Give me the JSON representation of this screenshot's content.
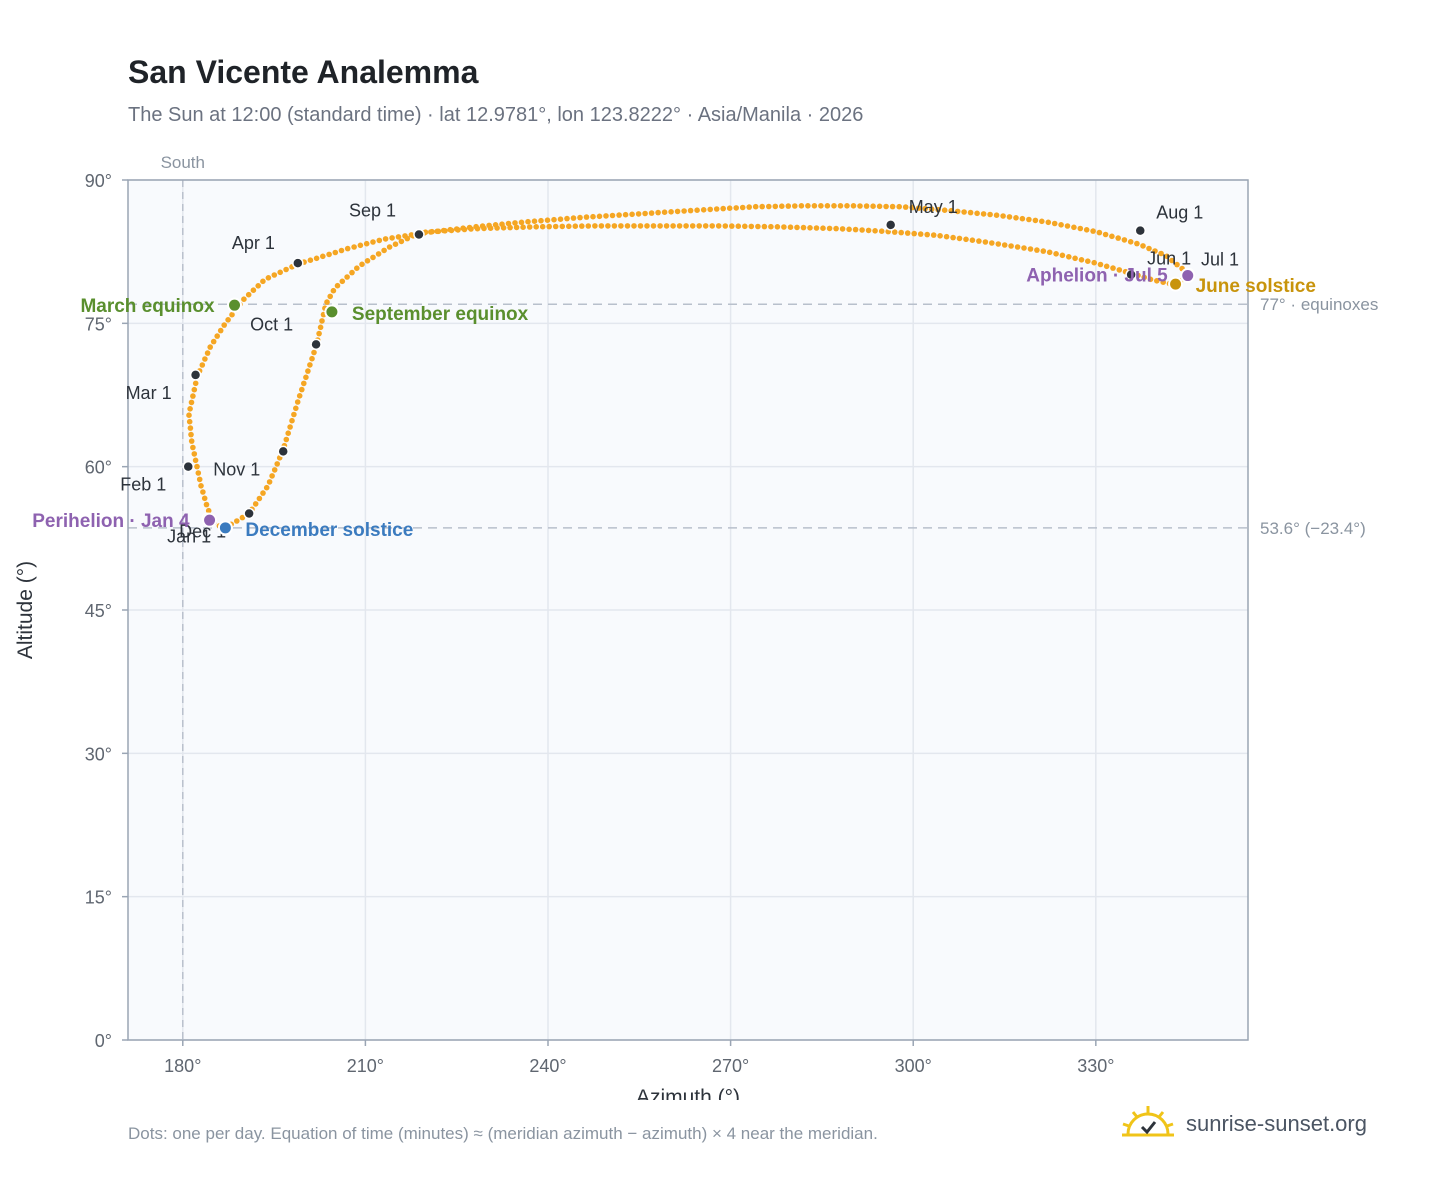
{
  "title": "San Vicente Analemma",
  "subtitle": "The Sun at 12:00 (standard time) · lat 12.9781°, lon 123.8222° · Asia/Manila · 2026",
  "footnote": "Dots: one per day. Equation of time (minutes) ≈ (meridian azimuth − azimuth) × 4 near the meridian.",
  "brand": {
    "text": "sunrise-sunset.org",
    "icon": "sun-logo-icon"
  },
  "colors": {
    "path": "#f5a623",
    "month_marker": "#2d333b",
    "equinox": "#5a8f2e",
    "perihelion_aphelion": "#8e62b0",
    "june_solstice": "#c8940c",
    "december_solstice": "#3b7bbf",
    "plot_bg": "#f8fafd",
    "grid": "#e3e7ee",
    "frame": "#9aa5b4",
    "reference_line": "#b8c0cc"
  },
  "chart_data": {
    "type": "scatter",
    "title": "San Vicente Analemma",
    "xlabel": "Azimuth (°)",
    "ylabel": "Altitude (°)",
    "xlim": [
      171,
      355
    ],
    "ylim": [
      0,
      90
    ],
    "x_ticks": [
      180,
      210,
      240,
      270,
      300,
      330
    ],
    "x_tick_labels": [
      "180°",
      "210°",
      "240°",
      "270°",
      "300°",
      "330°"
    ],
    "y_ticks": [
      0,
      15,
      30,
      45,
      60,
      75,
      90
    ],
    "y_tick_labels": [
      "0°",
      "15°",
      "30°",
      "45°",
      "60°",
      "75°",
      "90°"
    ],
    "grid": true,
    "south_line": {
      "x": 180,
      "label": "South"
    },
    "reference_lines": [
      {
        "y": 77,
        "label": "77° · equinoxes"
      },
      {
        "y": 53.6,
        "label": "53.6° (−23.4°)"
      }
    ],
    "daily_path": [
      [
        183.0,
        58.0
      ],
      [
        181.5,
        62.5
      ],
      [
        181.0,
        65.5
      ],
      [
        182.4,
        69.5
      ],
      [
        184.5,
        72.5
      ],
      [
        187.0,
        75.0
      ],
      [
        190.0,
        77.5
      ],
      [
        193.5,
        79.6
      ],
      [
        198.9,
        81.2
      ],
      [
        207.0,
        82.8
      ],
      [
        213.0,
        83.8
      ],
      [
        220.0,
        84.5
      ],
      [
        228.0,
        85.1
      ],
      [
        236.0,
        85.6
      ],
      [
        246.0,
        86.1
      ],
      [
        256.0,
        86.5
      ],
      [
        266.0,
        86.9
      ],
      [
        274.0,
        87.2
      ],
      [
        282.0,
        87.3
      ],
      [
        290.0,
        87.3
      ],
      [
        298.0,
        87.2
      ],
      [
        306.0,
        86.8
      ],
      [
        314.0,
        86.3
      ],
      [
        322.0,
        85.6
      ],
      [
        330.0,
        84.6
      ],
      [
        337.0,
        83.3
      ],
      [
        341.5,
        82.1
      ],
      [
        344.0,
        80.8
      ],
      [
        345.3,
        80.3
      ],
      [
        343.2,
        79.0
      ],
      [
        339.0,
        79.6
      ],
      [
        336.0,
        80.2
      ],
      [
        330.0,
        81.3
      ],
      [
        322.0,
        82.5
      ],
      [
        312.0,
        83.5
      ],
      [
        304.0,
        84.2
      ],
      [
        296.0,
        84.6
      ],
      [
        288.0,
        84.9
      ],
      [
        278.0,
        85.1
      ],
      [
        268.0,
        85.2
      ],
      [
        258.0,
        85.2
      ],
      [
        248.0,
        85.2
      ],
      [
        238.0,
        85.1
      ],
      [
        228.0,
        84.9
      ],
      [
        219.0,
        84.5
      ],
      [
        214.0,
        83.0
      ],
      [
        209.0,
        81.0
      ],
      [
        205.0,
        78.7
      ],
      [
        203.5,
        77.0
      ],
      [
        202.0,
        72.8
      ],
      [
        199.0,
        67.0
      ],
      [
        196.5,
        61.8
      ],
      [
        194.0,
        58.0
      ],
      [
        190.9,
        55.1
      ],
      [
        187.0,
        53.6
      ],
      [
        186.0,
        53.8
      ],
      [
        185.0,
        54.2
      ],
      [
        184.0,
        55.8
      ],
      [
        183.0,
        58.0
      ]
    ],
    "month_markers": [
      {
        "label": "Jan 1",
        "x": 184.0,
        "y": 54.6
      },
      {
        "label": "Feb 1",
        "x": 180.9,
        "y": 60.0
      },
      {
        "label": "Mar 1",
        "x": 182.1,
        "y": 69.6
      },
      {
        "label": "Apr 1",
        "x": 198.9,
        "y": 81.3
      },
      {
        "label": "May 1",
        "x": 296.3,
        "y": 85.3
      },
      {
        "label": "Jun 1",
        "x": 335.8,
        "y": 80.1
      },
      {
        "label": "Jul 1",
        "x": 345.3,
        "y": 80.2
      },
      {
        "label": "Aug 1",
        "x": 337.3,
        "y": 84.7
      },
      {
        "label": "Sep 1",
        "x": 218.8,
        "y": 84.3
      },
      {
        "label": "Oct 1",
        "x": 201.9,
        "y": 72.8
      },
      {
        "label": "Nov 1",
        "x": 196.5,
        "y": 61.6
      },
      {
        "label": "Dec 1",
        "x": 190.9,
        "y": 55.1
      }
    ],
    "events": [
      {
        "label": "March equinox",
        "x": 188.5,
        "y": 76.9,
        "kind": "equinox"
      },
      {
        "label": "September equinox",
        "x": 204.5,
        "y": 76.2,
        "kind": "equinox"
      },
      {
        "label": "June solstice",
        "x": 343.1,
        "y": 79.1,
        "kind": "june_solstice"
      },
      {
        "label": "December solstice",
        "x": 187.0,
        "y": 53.6,
        "kind": "december_solstice"
      },
      {
        "label": "Perihelion · Jan 4",
        "x": 184.4,
        "y": 54.4,
        "kind": "perihelion_aphelion"
      },
      {
        "label": "Aphelion · Jul 5",
        "x": 345.1,
        "y": 80.0,
        "kind": "perihelion_aphelion"
      }
    ]
  }
}
